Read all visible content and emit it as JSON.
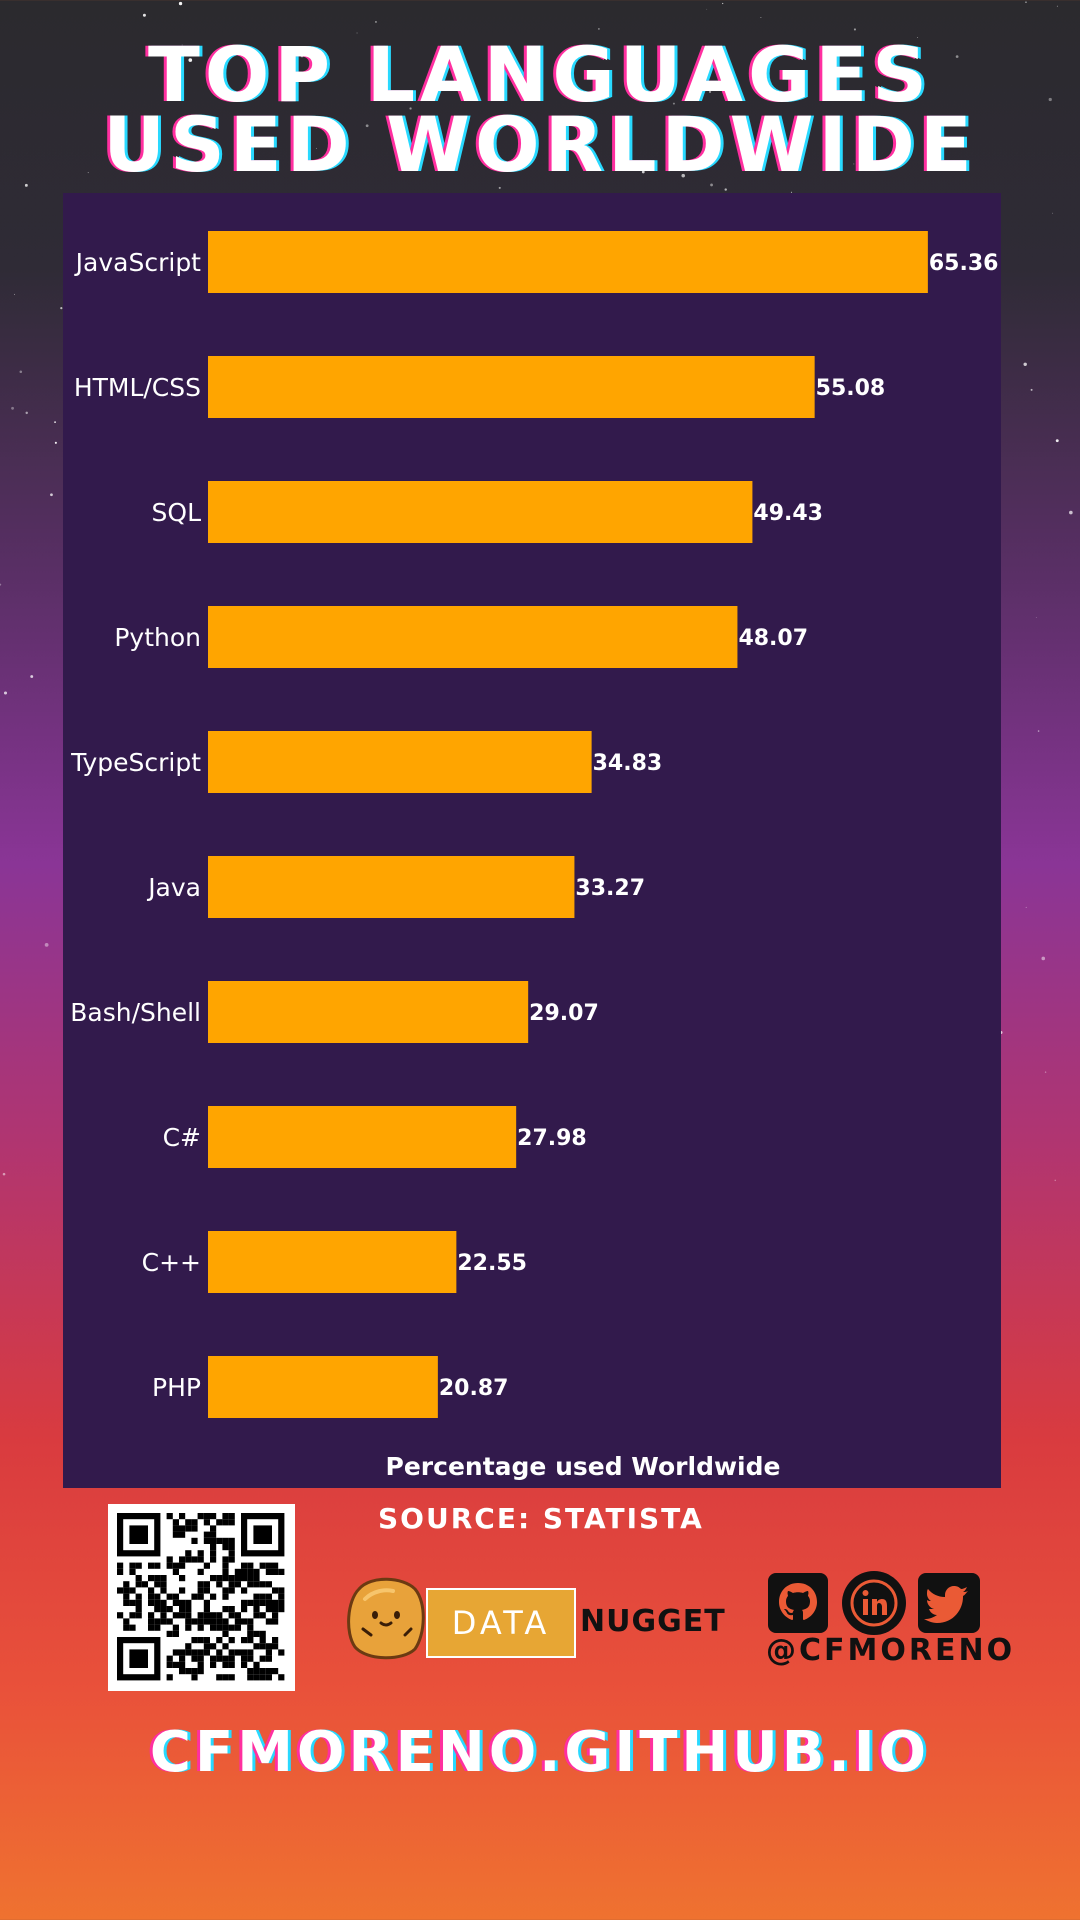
{
  "title_line1": "TOP LANGUAGES",
  "title_line2": "USED WORLDWIDE",
  "source": "SOURCE: STATISTA",
  "brand": {
    "box": "DATA",
    "word": "NUGGET"
  },
  "handle": "@CFMORENO",
  "footer_url": "CFMORENO.GITHUB.IO",
  "icons": [
    "qr-code-icon",
    "nugget-mascot-icon",
    "github-icon",
    "linkedin-icon",
    "twitter-icon"
  ],
  "colors": {
    "bar": "#ffa500",
    "panel": "#321a4c",
    "text": "#ffffff"
  },
  "chart_data": {
    "type": "bar",
    "orientation": "horizontal",
    "categories": [
      "JavaScript",
      "HTML/CSS",
      "SQL",
      "Python",
      "TypeScript",
      "Java",
      "Bash/Shell",
      "C#",
      "C++",
      "PHP"
    ],
    "values": [
      65.36,
      55.08,
      49.43,
      48.07,
      34.83,
      33.27,
      29.07,
      27.98,
      22.55,
      20.87
    ],
    "xlabel": "Percentage used Worldwide",
    "ylabel": "",
    "data_labels": true,
    "grid": false,
    "xlim": [
      0,
      72
    ]
  }
}
